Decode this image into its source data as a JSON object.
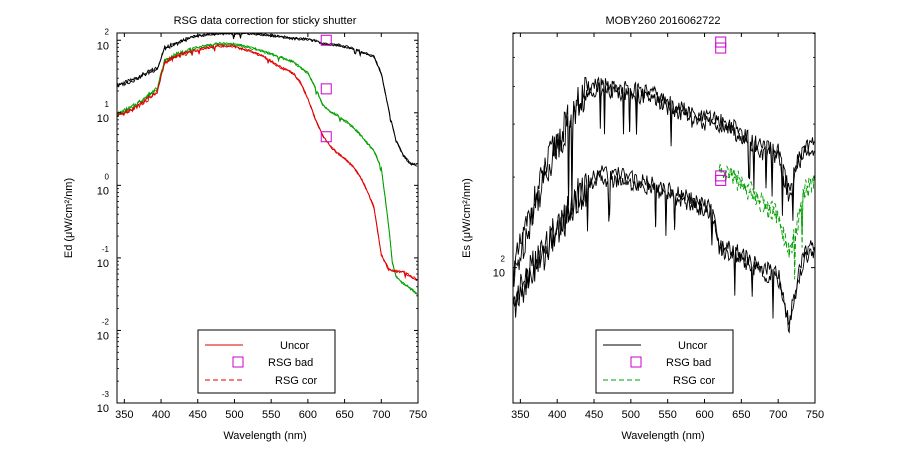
{
  "colors": {
    "uncor": "#e00000",
    "cor_green": "#00a000",
    "black": "#000000",
    "bad": "#cc00cc"
  },
  "chart_data": [
    {
      "type": "line",
      "title": "RSG data correction for sticky shutter",
      "xlabel": "Wavelength (nm)",
      "ylabel": "Ed (μW/cm²/nm)",
      "xlim": [
        340,
        750
      ],
      "ylim_log10": [
        -3,
        2.1
      ],
      "yscale": "log",
      "grid": false,
      "legend_position": "bottom-center",
      "x_ticks": [
        "350",
        "400",
        "450",
        "500",
        "550",
        "600",
        "650",
        "700",
        "750"
      ],
      "y_ticks": [
        {
          "base": "10",
          "exp": "-3",
          "log": -3
        },
        {
          "base": "10",
          "exp": "-2",
          "log": -2
        },
        {
          "base": "10",
          "exp": "-1",
          "log": -1
        },
        {
          "base": "10",
          "exp": "0",
          "log": 0
        },
        {
          "base": "10",
          "exp": "1",
          "log": 1
        },
        {
          "base": "10",
          "exp": "2",
          "log": 2
        }
      ],
      "legend": [
        {
          "label": "Uncor",
          "style": "solid",
          "color": "uncor"
        },
        {
          "label": "RSG bad",
          "style": "marker",
          "color": "bad"
        },
        {
          "label": "RSG cor",
          "style": "dashed",
          "color": "uncor"
        }
      ],
      "series": [
        {
          "x": [
            340,
            360,
            380,
            395,
            405,
            420,
            440,
            460,
            480,
            500,
            520,
            540,
            560,
            580,
            600,
            610,
            620,
            630,
            640,
            650,
            660,
            670,
            680,
            690,
            700,
            710,
            720,
            730,
            740,
            750
          ],
          "log10_y": [
            1.38,
            1.45,
            1.55,
            1.62,
            1.9,
            1.96,
            2.05,
            2.08,
            2.1,
            2.09,
            2.1,
            2.08,
            2.06,
            2.03,
            2.02,
            2.0,
            1.96,
            1.95,
            1.94,
            1.92,
            1.9,
            1.86,
            1.82,
            1.78,
            1.55,
            1.05,
            0.62,
            0.42,
            0.3,
            0.28
          ],
          "color": "black",
          "dash": false
        },
        {
          "x": [
            340,
            360,
            380,
            395,
            405,
            420,
            440,
            460,
            480,
            500,
            520,
            540,
            560,
            580,
            600,
            610,
            620,
            630,
            640,
            650,
            660,
            670,
            680,
            690,
            700,
            710,
            715,
            720,
            730,
            740,
            750
          ],
          "log10_y": [
            0.98,
            1.08,
            1.22,
            1.35,
            1.72,
            1.8,
            1.88,
            1.93,
            1.96,
            1.95,
            1.91,
            1.85,
            1.78,
            1.71,
            1.55,
            1.36,
            1.12,
            1.02,
            0.97,
            0.9,
            0.82,
            0.72,
            0.6,
            0.48,
            0.25,
            -0.55,
            -1.05,
            -1.25,
            -1.35,
            -1.42,
            -1.5
          ],
          "color": "cor_green",
          "dash": false
        },
        {
          "x": [
            340,
            360,
            380,
            395,
            405,
            420,
            440,
            460,
            480,
            500,
            520,
            540,
            560,
            580,
            590,
            600,
            610,
            620,
            630,
            640,
            650,
            660,
            670,
            680,
            690,
            700,
            710,
            720,
            730,
            740,
            750
          ],
          "log10_y": [
            0.95,
            1.05,
            1.18,
            1.3,
            1.7,
            1.78,
            1.85,
            1.9,
            1.93,
            1.92,
            1.86,
            1.78,
            1.65,
            1.55,
            1.42,
            1.2,
            0.92,
            0.7,
            0.55,
            0.45,
            0.38,
            0.28,
            0.15,
            -0.05,
            -0.3,
            -0.95,
            -1.15,
            -1.18,
            -1.18,
            -1.25,
            -1.3
          ],
          "color": "uncor",
          "dash": false
        }
      ],
      "bad_points": [
        {
          "x": 625,
          "log10_y": 2.0
        },
        {
          "x": 625,
          "log10_y": 1.33
        },
        {
          "x": 625,
          "log10_y": 0.67
        }
      ]
    },
    {
      "type": "line",
      "title": "MOBY260  2016062722",
      "xlabel": "Wavelength (nm)",
      "ylabel": "Es (μW/cm²/nm)",
      "xlim": [
        340,
        750
      ],
      "ylim_log10": [
        1.55,
        2.78
      ],
      "yscale": "log",
      "grid": false,
      "legend_position": "bottom-center",
      "x_ticks": [
        "350",
        "400",
        "450",
        "500",
        "550",
        "600",
        "650",
        "700",
        "750"
      ],
      "y_ticks": [
        {
          "base": "10",
          "exp": "2",
          "log": 2
        }
      ],
      "legend": [
        {
          "label": "Uncor",
          "style": "solid",
          "color": "black"
        },
        {
          "label": "RSG bad",
          "style": "marker",
          "color": "bad"
        },
        {
          "label": "RSG cor",
          "style": "dashed",
          "color": "cor_green"
        }
      ],
      "series": [
        {
          "x": [
            340,
            360,
            380,
            395,
            405,
            420,
            440,
            455,
            470,
            490,
            510,
            530,
            550,
            570,
            590,
            610,
            620,
            640,
            660,
            680,
            700,
            715,
            725,
            735,
            750
          ],
          "log10_y": [
            1.98,
            2.15,
            2.3,
            2.4,
            2.44,
            2.52,
            2.59,
            2.62,
            2.6,
            2.6,
            2.59,
            2.58,
            2.55,
            2.53,
            2.5,
            2.5,
            2.49,
            2.47,
            2.43,
            2.4,
            2.39,
            2.25,
            2.35,
            2.4,
            2.42
          ],
          "color": "black",
          "dash": false
        },
        {
          "x": [
            340,
            360,
            380,
            395,
            405,
            420,
            440,
            455,
            470,
            490,
            510,
            530,
            550,
            570,
            590,
            610,
            620,
            640,
            660,
            680,
            700,
            715,
            725,
            735,
            750
          ],
          "log10_y": [
            1.88,
            1.98,
            2.05,
            2.12,
            2.15,
            2.22,
            2.28,
            2.32,
            2.31,
            2.31,
            2.29,
            2.28,
            2.26,
            2.24,
            2.22,
            2.2,
            2.08,
            2.06,
            2.03,
            2.0,
            1.98,
            1.82,
            1.95,
            2.05,
            2.08
          ],
          "color": "black",
          "dash": false
        },
        {
          "x": [
            620,
            640,
            660,
            680,
            700,
            715,
            725,
            735,
            750
          ],
          "log10_y": [
            2.34,
            2.31,
            2.27,
            2.22,
            2.18,
            2.06,
            2.14,
            2.26,
            2.31
          ],
          "color": "cor_green",
          "dash": true
        }
      ],
      "bad_points": [
        {
          "x": 622,
          "log10_y": 2.75
        },
        {
          "x": 622,
          "log10_y": 2.73
        },
        {
          "x": 622,
          "log10_y": 2.305
        },
        {
          "x": 622,
          "log10_y": 2.29
        }
      ]
    }
  ]
}
